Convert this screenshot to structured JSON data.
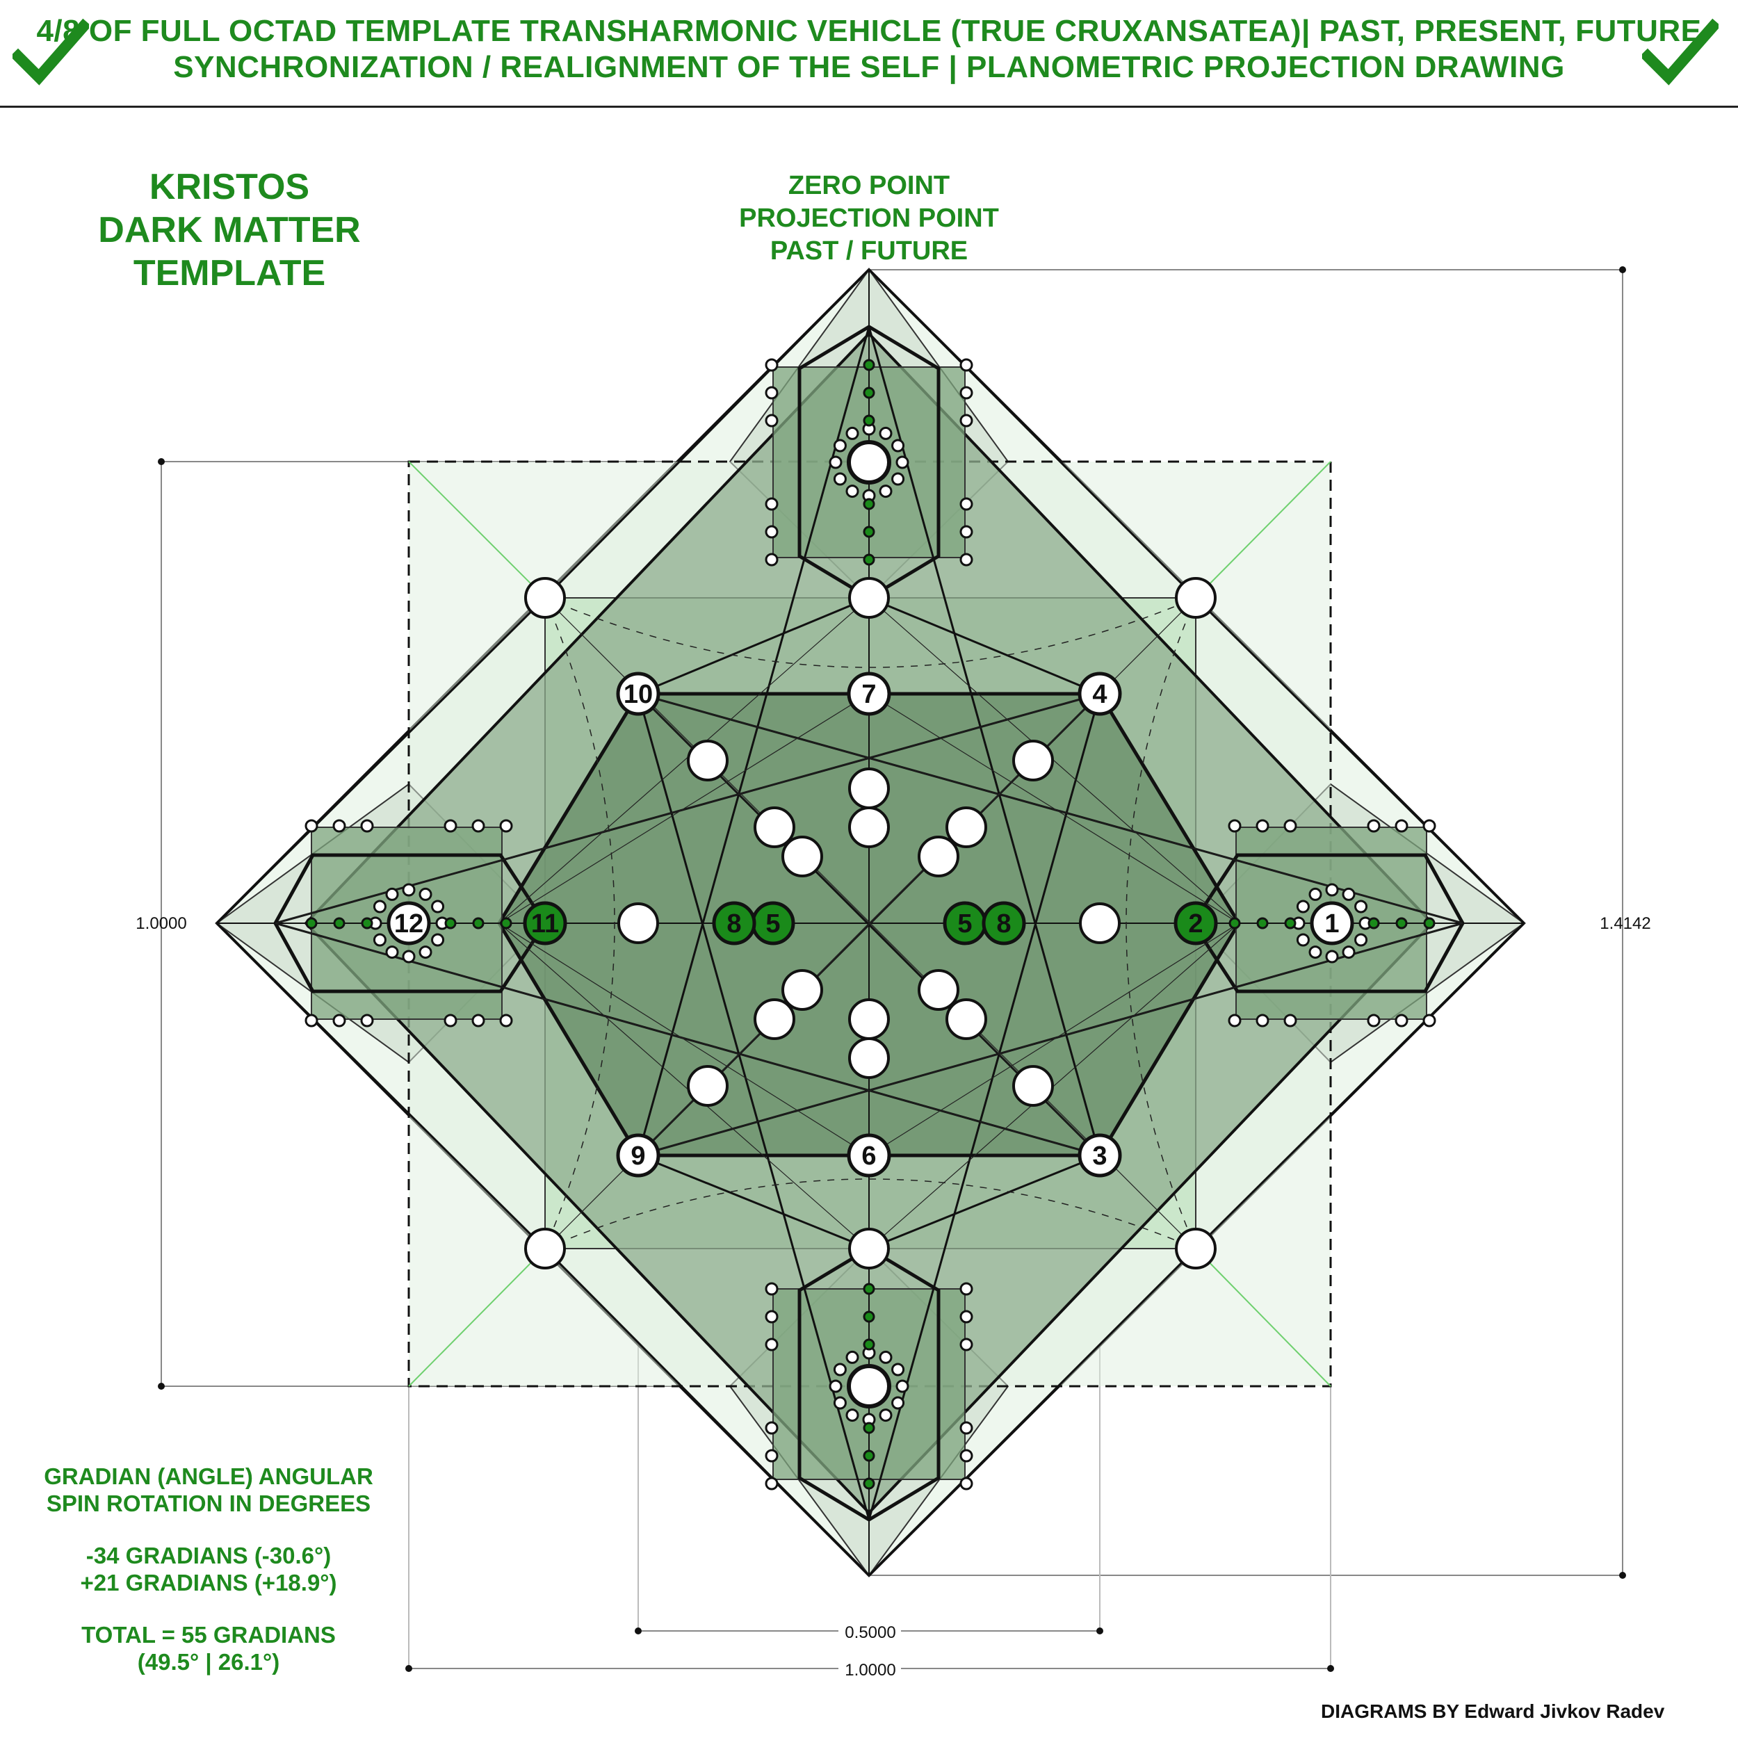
{
  "header": {
    "line1": "4/8 OF FULL OCTAD TEMPLATE TRANSHARMONIC VEHICLE (TRUE CRUXANSATEA)| PAST, PRESENT, FUTURE",
    "line2": "SYNCHRONIZATION / REALIGNMENT OF THE SELF | PLANOMETRIC PROJECTION DRAWING",
    "check_icon": "check-mark-icon"
  },
  "template_title": [
    "KRISTOS",
    "DARK MATTER",
    "TEMPLATE"
  ],
  "zero_point": [
    "ZERO POINT",
    "PROJECTION POINT",
    "PAST / FUTURE"
  ],
  "dimensions": {
    "left": "1.0000",
    "right": "1.4142",
    "bottom_inner": "0.5000",
    "bottom_outer": "1.0000"
  },
  "gradian": {
    "title1": "GRADIAN (ANGLE) ANGULAR",
    "title2": "SPIN ROTATION IN DEGREES",
    "value1": "-34 GRADIANS (-30.6°)",
    "value2": "+21 GRADIANS (+18.9°)",
    "total1": "TOTAL = 55 GRADIANS",
    "total2": "(49.5° | 26.1°)"
  },
  "credit": "DIAGRAMS BY Edward Jivkov Radev",
  "nodes": [
    {
      "label": "1",
      "style": "white"
    },
    {
      "label": "2",
      "style": "green"
    },
    {
      "label": "3",
      "style": "white"
    },
    {
      "label": "4",
      "style": "white"
    },
    {
      "label": "5",
      "style": "green"
    },
    {
      "label": "5",
      "style": "green"
    },
    {
      "label": "6",
      "style": "white"
    },
    {
      "label": "7",
      "style": "white"
    },
    {
      "label": "8",
      "style": "green"
    },
    {
      "label": "8",
      "style": "green"
    },
    {
      "label": "9",
      "style": "white"
    },
    {
      "label": "10",
      "style": "white"
    },
    {
      "label": "11",
      "style": "green"
    },
    {
      "label": "12",
      "style": "white"
    }
  ],
  "colors": {
    "accent_green": "#1e8a1e",
    "node_green": "#1a8a1a",
    "fill_dark": "#5f8a5f",
    "fill_light": "#cfe8cf"
  }
}
